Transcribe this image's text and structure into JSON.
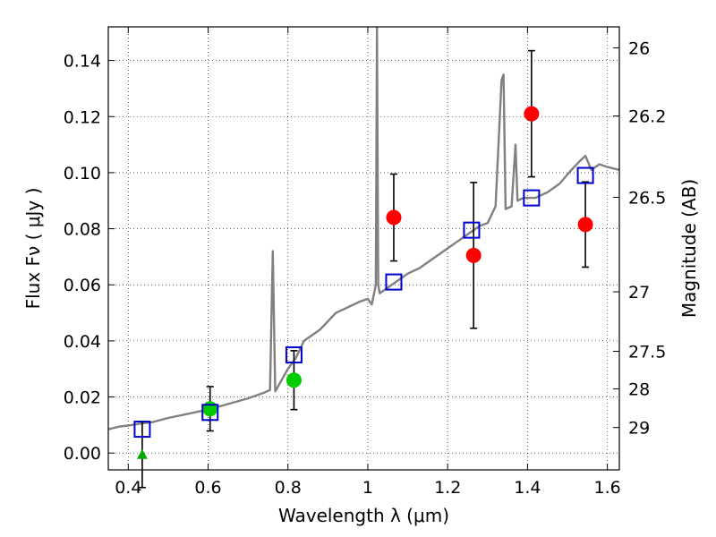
{
  "chart_data": {
    "type": "scatter",
    "xlabel": "Wavelength  λ (μm)",
    "ylabel": "Flux  Fν  ( μJy )",
    "y2label": "Magnitude (AB)",
    "xlim": [
      0.35,
      1.63
    ],
    "ylim": [
      -0.006,
      0.152
    ],
    "x_ticks": [
      0.4,
      0.6,
      0.8,
      1.0,
      1.2,
      1.4,
      1.6
    ],
    "x_tick_labels": [
      "0.4",
      "0.6",
      "0.8",
      "1",
      "1.2",
      "1.4",
      "1.6"
    ],
    "y_ticks": [
      0.0,
      0.02,
      0.04,
      0.06,
      0.08,
      0.1,
      0.12,
      0.14
    ],
    "y_tick_labels": [
      "0.00",
      "0.02",
      "0.04",
      "0.06",
      "0.08",
      "0.10",
      "0.12",
      "0.14"
    ],
    "y2_ticks": [
      {
        "label": "26",
        "flux": 0.1445
      },
      {
        "label": "26.2",
        "flux": 0.1202
      },
      {
        "label": "26.5",
        "flux": 0.0912
      },
      {
        "label": "27",
        "flux": 0.0575
      },
      {
        "label": "27.5",
        "flux": 0.0363
      },
      {
        "label": "28",
        "flux": 0.0229
      },
      {
        "label": "29",
        "flux": 0.0091
      }
    ],
    "grid": true,
    "colors": {
      "spectrum": "#808080",
      "red_points": "#ff0000",
      "green_points": "#00cc00",
      "green_upper_limit": "#00aa00",
      "model_squares": "#0000cc",
      "errorbars": "#000000"
    },
    "series": [
      {
        "kind": "line",
        "points": [
          [
            0.35,
            0.0085
          ],
          [
            0.38,
            0.0095
          ],
          [
            0.4,
            0.0098
          ],
          [
            0.43,
            0.0105
          ],
          [
            0.46,
            0.011
          ],
          [
            0.5,
            0.0125
          ],
          [
            0.55,
            0.014
          ],
          [
            0.6,
            0.0155
          ],
          [
            0.65,
            0.0175
          ],
          [
            0.7,
            0.0195
          ],
          [
            0.74,
            0.0215
          ],
          [
            0.755,
            0.0225
          ],
          [
            0.762,
            0.072
          ],
          [
            0.768,
            0.022
          ],
          [
            0.78,
            0.025
          ],
          [
            0.8,
            0.03
          ],
          [
            0.82,
            0.034
          ],
          [
            0.84,
            0.04
          ],
          [
            0.86,
            0.042
          ],
          [
            0.88,
            0.044
          ],
          [
            0.9,
            0.047
          ],
          [
            0.92,
            0.05
          ],
          [
            0.95,
            0.052
          ],
          [
            0.98,
            0.054
          ],
          [
            1.0,
            0.055
          ],
          [
            1.01,
            0.053
          ],
          [
            1.02,
            0.06
          ],
          [
            1.023,
            0.152
          ],
          [
            1.026,
            0.06
          ],
          [
            1.03,
            0.057
          ],
          [
            1.05,
            0.059
          ],
          [
            1.07,
            0.061
          ],
          [
            1.1,
            0.064
          ],
          [
            1.13,
            0.066
          ],
          [
            1.16,
            0.069
          ],
          [
            1.19,
            0.072
          ],
          [
            1.22,
            0.075
          ],
          [
            1.25,
            0.078
          ],
          [
            1.28,
            0.081
          ],
          [
            1.3,
            0.082
          ],
          [
            1.32,
            0.088
          ],
          [
            1.335,
            0.133
          ],
          [
            1.34,
            0.135
          ],
          [
            1.345,
            0.087
          ],
          [
            1.36,
            0.088
          ],
          [
            1.37,
            0.11
          ],
          [
            1.375,
            0.09
          ],
          [
            1.39,
            0.091
          ],
          [
            1.42,
            0.091
          ],
          [
            1.45,
            0.093
          ],
          [
            1.48,
            0.096
          ],
          [
            1.51,
            0.101
          ],
          [
            1.53,
            0.104
          ],
          [
            1.545,
            0.106
          ],
          [
            1.56,
            0.101
          ],
          [
            1.58,
            0.103
          ],
          [
            1.6,
            0.102
          ],
          [
            1.63,
            0.101
          ]
        ]
      },
      {
        "kind": "points",
        "marker": "circle-red",
        "points": [
          {
            "x": 1.065,
            "y": 0.084,
            "err": 0.0155
          },
          {
            "x": 1.265,
            "y": 0.0705,
            "err": 0.026
          },
          {
            "x": 1.41,
            "y": 0.121,
            "err": 0.0225
          },
          {
            "x": 1.545,
            "y": 0.0815,
            "err": 0.0152
          }
        ]
      },
      {
        "kind": "points",
        "marker": "circle-green",
        "points": [
          {
            "x": 0.605,
            "y": 0.0158,
            "err": 0.0079
          },
          {
            "x": 0.815,
            "y": 0.026,
            "err": 0.0105
          }
        ]
      },
      {
        "kind": "points",
        "marker": "triangle-green",
        "points": [
          {
            "x": 0.435,
            "y": -0.0005,
            "err": 0.0118
          }
        ]
      },
      {
        "kind": "points",
        "marker": "square-blue",
        "points": [
          {
            "x": 0.435,
            "y": 0.0085
          },
          {
            "x": 0.605,
            "y": 0.0145
          },
          {
            "x": 0.815,
            "y": 0.035
          },
          {
            "x": 1.065,
            "y": 0.061
          },
          {
            "x": 1.26,
            "y": 0.0795
          },
          {
            "x": 1.41,
            "y": 0.091
          },
          {
            "x": 1.545,
            "y": 0.099
          }
        ]
      }
    ]
  }
}
